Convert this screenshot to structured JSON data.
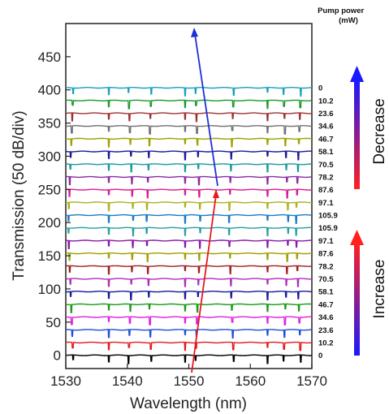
{
  "chart_data": {
    "type": "line",
    "title": "",
    "xlabel": "Wavelength (nm)",
    "ylabel": "Transmission (50 dB/div)",
    "xlim": [
      1530,
      1570
    ],
    "ylim": [
      -20,
      500
    ],
    "xticks": [
      1530,
      1540,
      1550,
      1560,
      1570
    ],
    "yticks": [
      0,
      50,
      100,
      150,
      200,
      250,
      300,
      350,
      400,
      450
    ],
    "series_offset_step": 19.2,
    "legend_title": "Pump power\n(mW)",
    "pump_power_labels": [
      "0",
      "10.2",
      "23.6",
      "34.6",
      "46.7",
      "58.1",
      "70.5",
      "78.2",
      "87.6",
      "97.1",
      "105.9",
      "105.9",
      "97.1",
      "87.6",
      "78.2",
      "70.5",
      "58.1",
      "46.7",
      "34.6",
      "23.6",
      "10.2",
      "0"
    ],
    "series_colors": [
      "#000000",
      "#e41a1c",
      "#1f4fd6",
      "#e020e0",
      "#1a9a1a",
      "#1a1a9a",
      "#b02cbf",
      "#a02020",
      "#a0a000",
      "#8a1aa8",
      "#2aa0a0",
      "#1a7ac8",
      "#b0b020",
      "#e01890",
      "#8a2ca0",
      "#1a9a9a",
      "#1a1a9a",
      "#a0a000",
      "#707070",
      "#a03030",
      "#1a9a2a",
      "#1aa0c0"
    ],
    "dips_nm": [
      1531.2,
      1537.0,
      1540.2,
      1543.9,
      1549.4,
      1551.1,
      1557.3,
      1562.8,
      1565.4,
      1568.2
    ],
    "dip_depth": 12,
    "dip_shift_total_nm": 3.2,
    "annotations": [
      {
        "label": "Increase",
        "color_from": "#1a1aff",
        "color_to": "#ff2020"
      },
      {
        "label": "Decrease",
        "color_from": "#ff2020",
        "color_to": "#1a1aff"
      }
    ],
    "grid": false,
    "legend_position": "right"
  }
}
